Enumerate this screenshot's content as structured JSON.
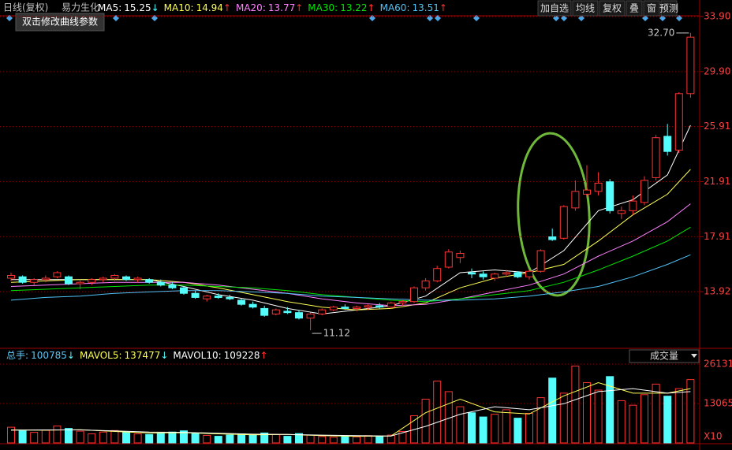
{
  "header": {
    "title": "日线(复权)",
    "stock": "易力生化",
    "hint": "双击修改曲线参数",
    "buttons": [
      "加自选",
      "均线",
      "复权",
      "叠",
      "窗",
      "预测"
    ]
  },
  "chart_data": [
    {
      "type": "candlestick",
      "up_color": "#ff3232",
      "down_color": "#54fcfc",
      "ylim": [
        9.92,
        34.24
      ],
      "yticks": [
        13.92,
        17.91,
        21.91,
        25.91,
        {
          "value": 29.9,
          "label": "29.90"
        },
        {
          "value": 33.9,
          "label": "33.90"
        }
      ],
      "annotations": [
        {
          "value": 32.7,
          "label": "32.70",
          "candle": 59
        },
        {
          "value": 11.12,
          "label": "11.12",
          "candle": 26
        }
      ],
      "candles": [
        [
          14.9,
          15.3,
          14.7,
          15.1
        ],
        [
          15.0,
          15.1,
          14.5,
          14.6
        ],
        [
          14.6,
          14.9,
          14.4,
          14.8
        ],
        [
          14.8,
          15.1,
          14.6,
          14.9
        ],
        [
          15.0,
          15.4,
          14.9,
          15.3
        ],
        [
          15.0,
          15.1,
          14.4,
          14.5
        ],
        [
          14.5,
          14.8,
          14.1,
          14.6
        ],
        [
          14.6,
          14.9,
          14.4,
          14.8
        ],
        [
          14.8,
          15.0,
          14.6,
          14.9
        ],
        [
          14.9,
          15.2,
          14.7,
          15.1
        ],
        [
          15.0,
          15.1,
          14.7,
          14.8
        ],
        [
          14.8,
          15.0,
          14.6,
          14.9
        ],
        [
          14.8,
          14.9,
          14.5,
          14.6
        ],
        [
          14.6,
          14.8,
          14.3,
          14.4
        ],
        [
          14.4,
          14.6,
          14.1,
          14.2
        ],
        [
          14.2,
          14.3,
          13.7,
          13.8
        ],
        [
          13.8,
          14.0,
          13.4,
          13.5
        ],
        [
          13.4,
          13.7,
          13.2,
          13.6
        ],
        [
          13.6,
          13.8,
          13.4,
          13.5
        ],
        [
          13.5,
          13.7,
          13.3,
          13.4
        ],
        [
          13.3,
          13.4,
          12.9,
          13.0
        ],
        [
          13.0,
          13.2,
          12.7,
          12.8
        ],
        [
          12.7,
          12.9,
          12.1,
          12.2
        ],
        [
          12.3,
          12.7,
          12.2,
          12.6
        ],
        [
          12.5,
          12.8,
          12.3,
          12.4
        ],
        [
          12.4,
          12.6,
          11.9,
          12.0
        ],
        [
          12.0,
          12.4,
          11.12,
          12.3
        ],
        [
          12.3,
          12.7,
          12.2,
          12.6
        ],
        [
          12.6,
          12.9,
          12.5,
          12.8
        ],
        [
          12.8,
          13.0,
          12.6,
          12.7
        ],
        [
          12.7,
          12.9,
          12.5,
          12.8
        ],
        [
          12.8,
          13.0,
          12.6,
          12.9
        ],
        [
          12.9,
          13.1,
          12.7,
          12.8
        ],
        [
          12.8,
          13.2,
          12.7,
          13.1
        ],
        [
          13.1,
          13.3,
          12.9,
          13.2
        ],
        [
          13.2,
          14.3,
          13.1,
          14.2
        ],
        [
          14.2,
          14.9,
          14.0,
          14.7
        ],
        [
          14.7,
          15.8,
          14.6,
          15.6
        ],
        [
          15.7,
          17.0,
          15.6,
          16.8
        ],
        [
          16.4,
          16.9,
          16.0,
          16.7
        ],
        [
          15.3,
          15.6,
          14.9,
          15.2
        ],
        [
          15.2,
          15.4,
          14.8,
          15.0
        ],
        [
          14.9,
          15.3,
          14.7,
          15.2
        ],
        [
          15.2,
          15.5,
          15.0,
          15.3
        ],
        [
          15.3,
          15.4,
          14.9,
          15.0
        ],
        [
          15.0,
          15.5,
          14.8,
          15.4
        ],
        [
          15.4,
          17.0,
          15.3,
          16.9
        ],
        [
          17.9,
          18.5,
          17.6,
          17.7
        ],
        [
          17.8,
          20.2,
          17.7,
          20.1
        ],
        [
          20.0,
          22.0,
          19.8,
          21.2
        ],
        [
          21.0,
          23.1,
          20.8,
          21.3
        ],
        [
          21.2,
          22.6,
          20.9,
          21.8
        ],
        [
          21.9,
          22.1,
          19.6,
          19.8
        ],
        [
          19.6,
          20.1,
          19.2,
          19.8
        ],
        [
          19.8,
          20.9,
          19.5,
          20.5
        ],
        [
          20.4,
          22.3,
          20.2,
          22.0
        ],
        [
          22.2,
          25.3,
          22.0,
          25.1
        ],
        [
          25.2,
          26.1,
          23.8,
          24.1
        ],
        [
          24.2,
          28.4,
          24.0,
          28.3
        ],
        [
          28.3,
          32.7,
          28.0,
          32.4
        ]
      ],
      "ma_x": [
        0,
        3,
        6,
        9,
        12,
        15,
        18,
        21,
        24,
        27,
        30,
        33,
        36,
        39,
        42,
        45,
        48,
        51,
        54,
        57,
        59
      ],
      "ma_series": [
        {
          "name": "MA5",
          "value": 15.25,
          "arrow": "↓",
          "color": "#ffffff",
          "values": [
            14.8,
            14.8,
            14.8,
            14.8,
            14.8,
            14.3,
            13.7,
            13.3,
            12.7,
            12.3,
            12.6,
            12.9,
            13.6,
            15.3,
            15.5,
            15.3,
            16.9,
            19.8,
            20.6,
            22.4,
            26.0
          ]
        },
        {
          "name": "MA10",
          "value": 14.94,
          "arrow": "↑",
          "color": "#ffff54",
          "values": [
            14.6,
            14.7,
            14.8,
            14.8,
            14.8,
            14.6,
            14.2,
            13.7,
            13.2,
            12.8,
            12.6,
            12.7,
            13.1,
            14.2,
            14.9,
            15.3,
            15.9,
            17.6,
            19.5,
            21.0,
            22.8
          ]
        },
        {
          "name": "MA20",
          "value": 13.77,
          "arrow": "↑",
          "color": "#ff80ff",
          "values": [
            14.3,
            14.4,
            14.5,
            14.6,
            14.6,
            14.6,
            14.4,
            14.1,
            13.8,
            13.4,
            13.1,
            12.9,
            13.0,
            13.4,
            13.9,
            14.4,
            15.2,
            16.5,
            17.6,
            19.0,
            20.3
          ]
        },
        {
          "name": "MA30",
          "value": 13.22,
          "arrow": "↑",
          "color": "#00e600",
          "values": [
            14.0,
            14.1,
            14.2,
            14.3,
            14.4,
            14.4,
            14.3,
            14.2,
            14.0,
            13.7,
            13.5,
            13.3,
            13.2,
            13.4,
            13.7,
            14.0,
            14.6,
            15.5,
            16.5,
            17.6,
            18.6
          ]
        },
        {
          "name": "MA60",
          "value": 13.51,
          "arrow": "↑",
          "color": "#4fc3f7",
          "values": [
            13.3,
            13.5,
            13.6,
            13.8,
            13.9,
            14.0,
            14.0,
            13.9,
            13.8,
            13.6,
            13.5,
            13.4,
            13.3,
            13.3,
            13.4,
            13.6,
            13.9,
            14.3,
            15.0,
            15.9,
            16.6
          ]
        }
      ]
    },
    {
      "type": "volume",
      "title": "成交量",
      "unit": "X10",
      "ylim": [
        0,
        27960
      ],
      "yticks": [
        26131,
        13065
      ],
      "total": {
        "name": "总手",
        "value": 100785,
        "arrow": "↓",
        "color": "#5cc8f8"
      },
      "values": [
        5200,
        4000,
        3500,
        4200,
        5600,
        4800,
        3900,
        3000,
        3600,
        4100,
        3500,
        3000,
        2800,
        3200,
        3600,
        4000,
        3100,
        2500,
        2200,
        2600,
        3000,
        2700,
        3300,
        2800,
        2200,
        3100,
        2600,
        2100,
        1900,
        2300,
        2000,
        2400,
        2200,
        2600,
        3800,
        9000,
        14500,
        20500,
        17000,
        12000,
        10000,
        8600,
        9500,
        11000,
        8200,
        9800,
        15000,
        21500,
        16500,
        25500,
        20000,
        17500,
        22000,
        14000,
        12500,
        16000,
        19500,
        15500,
        18000,
        21000
      ],
      "ma_x": [
        0,
        3,
        6,
        9,
        12,
        15,
        18,
        21,
        24,
        27,
        30,
        33,
        36,
        39,
        42,
        45,
        48,
        51,
        54,
        57,
        59
      ],
      "ma_series": [
        {
          "name": "MAVOL5",
          "value": 137477,
          "arrow": "↓",
          "color": "#ffff54",
          "values": [
            4300,
            4200,
            4400,
            3800,
            3300,
            3400,
            3000,
            2700,
            2800,
            2400,
            2200,
            2300,
            10000,
            14500,
            10300,
            9600,
            15600,
            20000,
            16500,
            16500,
            18000
          ]
        },
        {
          "name": "MAVOL10",
          "value": 109228,
          "arrow": "↑",
          "color": "#ffffff",
          "values": [
            4200,
            4300,
            4300,
            4000,
            3600,
            3500,
            3200,
            2900,
            2800,
            2600,
            2400,
            2300,
            5500,
            9500,
            12000,
            11000,
            13000,
            17000,
            18000,
            16500,
            17000
          ]
        }
      ]
    }
  ]
}
